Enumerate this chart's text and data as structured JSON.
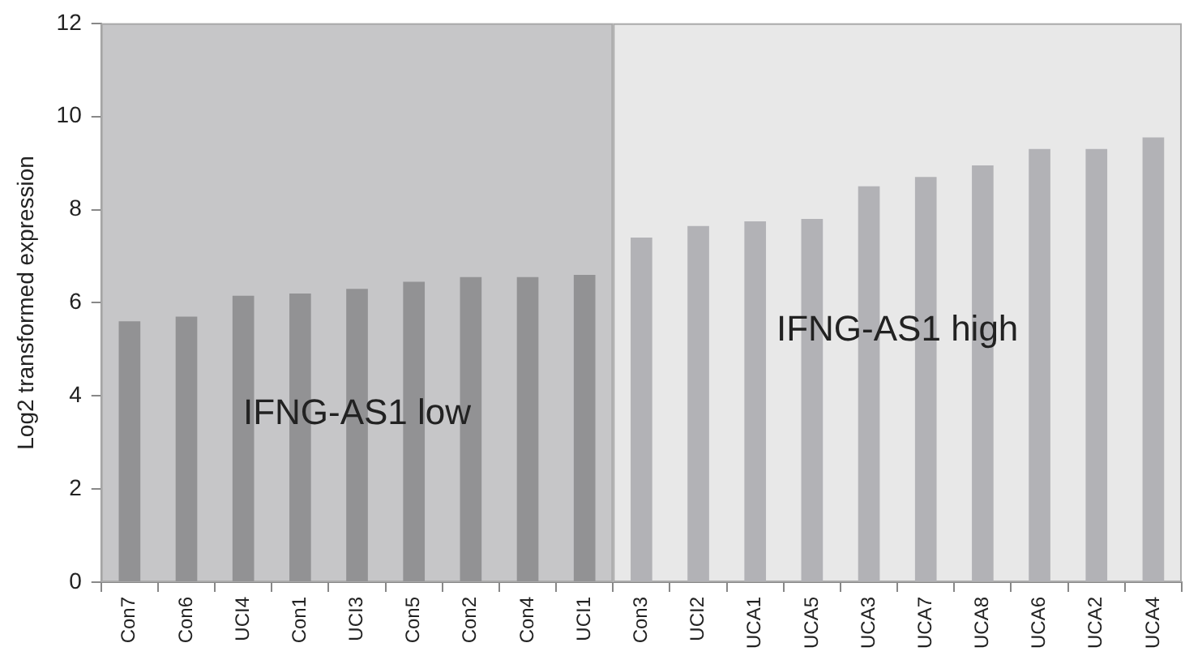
{
  "chart_data": {
    "type": "bar",
    "ylabel": "Log2 transformed expression",
    "categories": [
      "Con7",
      "Con6",
      "UCI4",
      "Con1",
      "UCI3",
      "Con5",
      "Con2",
      "Con4",
      "UCI1",
      "Con3",
      "UCI2",
      "UCA1",
      "UCA5",
      "UCA3",
      "UCA7",
      "UCA8",
      "UCA6",
      "UCA2",
      "UCA4"
    ],
    "series": [
      {
        "color": "#929294",
        "values": [
          5.6,
          5.7,
          6.15,
          6.2,
          6.3,
          6.45,
          6.55,
          6.55,
          6.6,
          null,
          null,
          null,
          null,
          null,
          null,
          null,
          null,
          null,
          null
        ]
      },
      {
        "color": "#b2b2b6",
        "values": [
          null,
          null,
          null,
          null,
          null,
          null,
          null,
          null,
          null,
          7.4,
          7.65,
          7.75,
          7.8,
          8.5,
          8.7,
          8.95,
          9.3,
          9.3,
          9.55
        ]
      }
    ],
    "bands": [
      {
        "axis": "x",
        "from": "Con7",
        "to": "UCI1",
        "label": "IFNG-AS1 low",
        "color": "#c6c6c8"
      },
      {
        "axis": "x",
        "from": "Con3",
        "to": "UCA4",
        "label": "IFNG-AS1 high",
        "color": "#e8e8e8"
      }
    ],
    "ylim": [
      0,
      12
    ],
    "yticks": [
      0,
      2,
      4,
      6,
      8,
      10,
      12
    ],
    "grid": false,
    "legend": false
  }
}
